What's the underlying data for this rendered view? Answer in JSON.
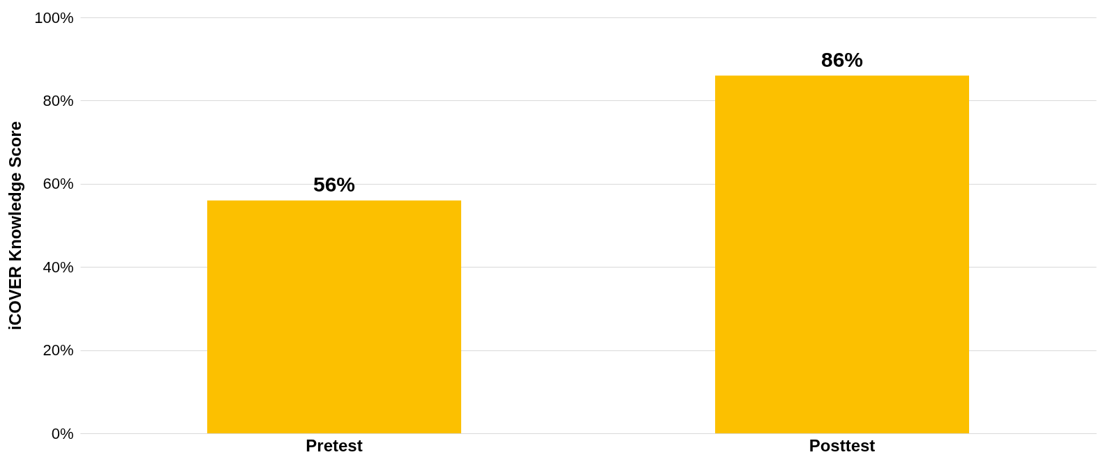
{
  "chart_data": {
    "type": "bar",
    "ylabel": "iCOVER Knowledge Score",
    "categories": [
      "Pretest",
      "Posttest"
    ],
    "values": [
      56,
      86
    ],
    "colors": [
      "#fcc000",
      "#fcc000"
    ],
    "value_labels": [
      "56%",
      "86%"
    ],
    "ylim": [
      0,
      100
    ],
    "yticks": [
      {
        "value": 0,
        "label": "0%"
      },
      {
        "value": 20,
        "label": "20%"
      },
      {
        "value": 40,
        "label": "40%"
      },
      {
        "value": 60,
        "label": "60%"
      },
      {
        "value": 80,
        "label": "80%"
      },
      {
        "value": 100,
        "label": "100%"
      }
    ],
    "grid": "y"
  }
}
